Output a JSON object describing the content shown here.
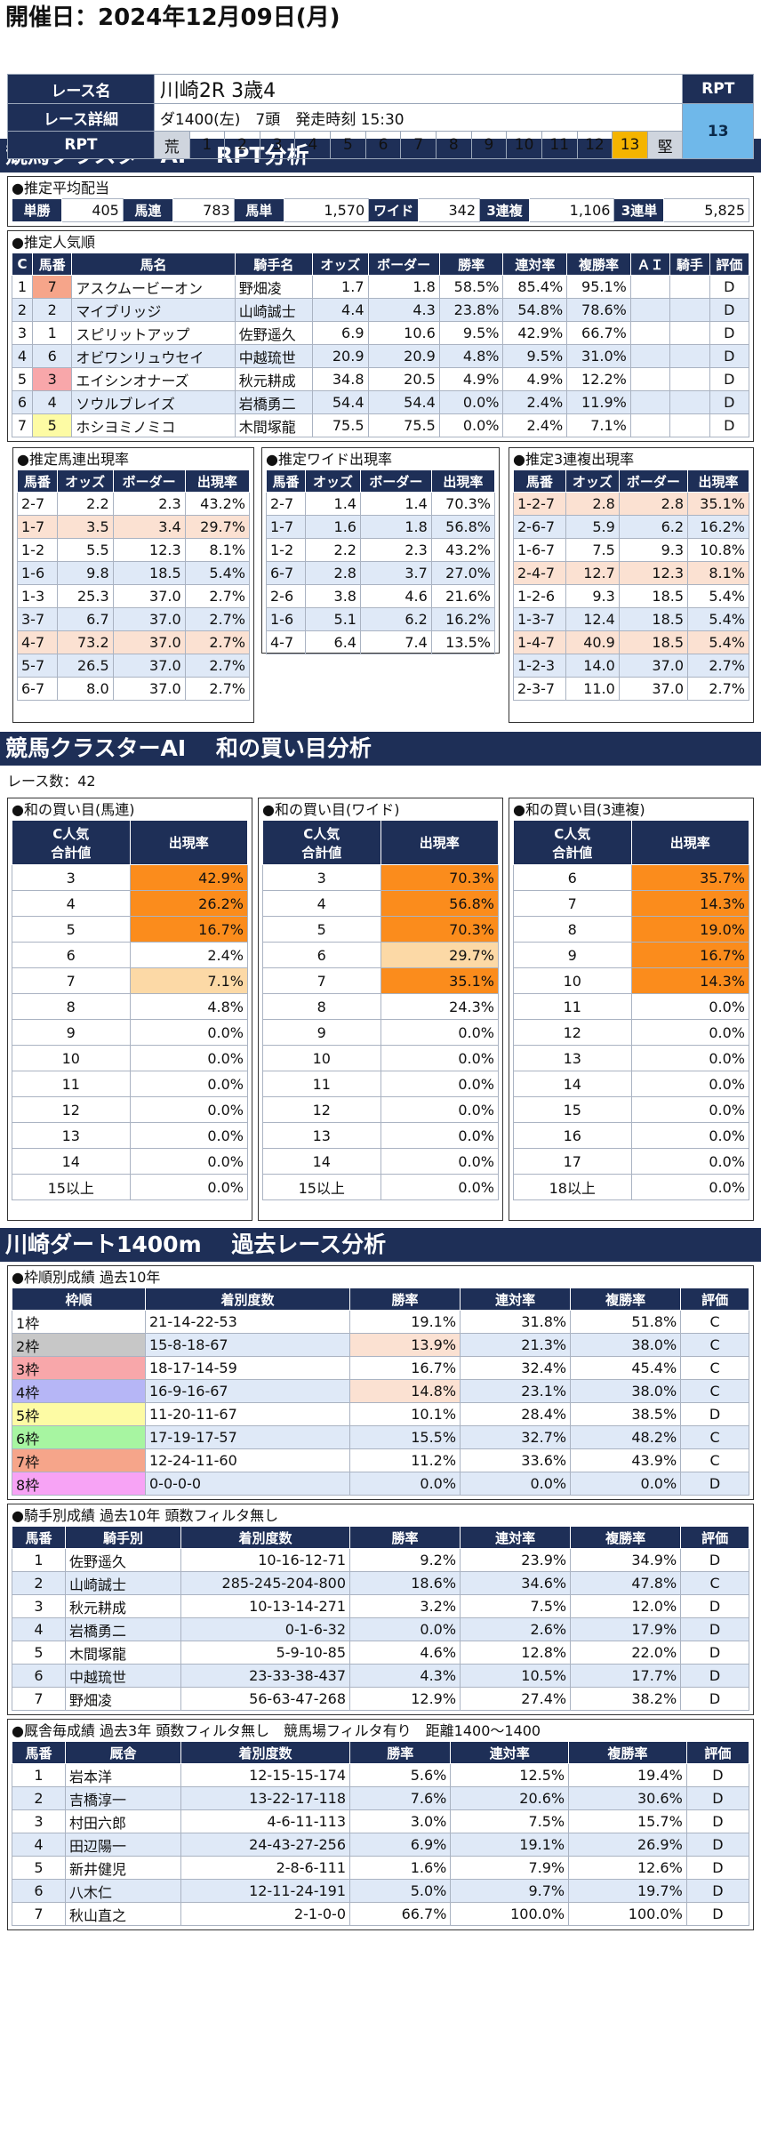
{
  "title": "開催日：2024年12月09日(月)",
  "race": {
    "name_label": "レース名",
    "name": "川崎2R 3歳4",
    "detail_label": "レース詳細",
    "detail": "ダ1400(左)　7頭　発走時刻 15:30",
    "rpt_label": "RPT",
    "rpt_head": "RPT",
    "rpt_value": "13",
    "scale": [
      "荒",
      "1",
      "2",
      "3",
      "4",
      "5",
      "6",
      "7",
      "8",
      "9",
      "10",
      "11",
      "12",
      "13",
      "堅"
    ]
  },
  "band1": "競馬クラスターAI　 RPT分析",
  "payout": {
    "title": "●推定平均配当",
    "items": [
      {
        "k": "単勝",
        "v": "405"
      },
      {
        "k": "馬連",
        "v": "783"
      },
      {
        "k": "馬単",
        "v": "1,570"
      },
      {
        "k": "ワイド",
        "v": "342"
      },
      {
        "k": "3連複",
        "v": "1,106"
      },
      {
        "k": "3連単",
        "v": "5,825"
      }
    ]
  },
  "pop": {
    "title": "●推定人気順",
    "headers": [
      "C",
      "馬番",
      "馬名",
      "騎手名",
      "オッズ",
      "ボーダー",
      "勝率",
      "連対率",
      "複勝率",
      "ＡＩ",
      "騎手",
      "評価"
    ],
    "rows": [
      [
        "1",
        "7",
        "アスクムービーオン",
        "野畑凌",
        "1.7",
        "1.8",
        "58.5%",
        "85.4%",
        "95.1%",
        "",
        "",
        "D"
      ],
      [
        "2",
        "2",
        "マイブリッジ",
        "山崎誠士",
        "4.4",
        "4.3",
        "23.8%",
        "54.8%",
        "78.6%",
        "",
        "",
        "D"
      ],
      [
        "3",
        "1",
        "スピリットアップ",
        "佐野遥久",
        "6.9",
        "10.6",
        "9.5%",
        "42.9%",
        "66.7%",
        "",
        "",
        "D"
      ],
      [
        "4",
        "6",
        "オビワンリュウセイ",
        "中越琉世",
        "20.9",
        "20.9",
        "4.8%",
        "9.5%",
        "31.0%",
        "",
        "",
        "D"
      ],
      [
        "5",
        "3",
        "エイシンオナーズ",
        "秋元耕成",
        "34.8",
        "20.5",
        "4.9%",
        "4.9%",
        "12.2%",
        "",
        "",
        "D"
      ],
      [
        "6",
        "4",
        "ソウルブレイズ",
        "岩橋勇二",
        "54.4",
        "54.4",
        "0.0%",
        "2.4%",
        "11.9%",
        "",
        "",
        "D"
      ],
      [
        "7",
        "5",
        "ホシヨミノミコ",
        "木間塚龍",
        "75.5",
        "75.5",
        "0.0%",
        "2.4%",
        "7.1%",
        "",
        "",
        "D"
      ]
    ]
  },
  "umaren": {
    "title": "●推定馬連出現率",
    "headers": [
      "馬番",
      "オッズ",
      "ボーダー",
      "出現率"
    ],
    "rows": [
      [
        "2-7",
        "2.2",
        "2.3",
        "43.2%"
      ],
      [
        "1-7",
        "3.5",
        "3.4",
        "29.7%"
      ],
      [
        "1-2",
        "5.5",
        "12.3",
        "8.1%"
      ],
      [
        "1-6",
        "9.8",
        "18.5",
        "5.4%"
      ],
      [
        "1-3",
        "25.3",
        "37.0",
        "2.7%"
      ],
      [
        "3-7",
        "6.7",
        "37.0",
        "2.7%"
      ],
      [
        "4-7",
        "73.2",
        "37.0",
        "2.7%"
      ],
      [
        "5-7",
        "26.5",
        "37.0",
        "2.7%"
      ],
      [
        "6-7",
        "8.0",
        "37.0",
        "2.7%"
      ]
    ]
  },
  "wide": {
    "title": "●推定ワイド出現率",
    "headers": [
      "馬番",
      "オッズ",
      "ボーダー",
      "出現率"
    ],
    "rows": [
      [
        "2-7",
        "1.4",
        "1.4",
        "70.3%"
      ],
      [
        "1-7",
        "1.6",
        "1.8",
        "56.8%"
      ],
      [
        "1-2",
        "2.2",
        "2.3",
        "43.2%"
      ],
      [
        "6-7",
        "2.8",
        "3.7",
        "27.0%"
      ],
      [
        "2-6",
        "3.8",
        "4.6",
        "21.6%"
      ],
      [
        "1-6",
        "5.1",
        "6.2",
        "16.2%"
      ],
      [
        "4-7",
        "6.4",
        "7.4",
        "13.5%"
      ]
    ]
  },
  "sanren": {
    "title": "●推定3連複出現率",
    "headers": [
      "馬番",
      "オッズ",
      "ボーダー",
      "出現率"
    ],
    "rows": [
      [
        "1-2-7",
        "2.8",
        "2.8",
        "35.1%"
      ],
      [
        "2-6-7",
        "5.9",
        "6.2",
        "16.2%"
      ],
      [
        "1-6-7",
        "7.5",
        "9.3",
        "10.8%"
      ],
      [
        "2-4-7",
        "12.7",
        "12.3",
        "8.1%"
      ],
      [
        "1-2-6",
        "9.3",
        "18.5",
        "5.4%"
      ],
      [
        "1-3-7",
        "12.4",
        "18.5",
        "5.4%"
      ],
      [
        "1-4-7",
        "40.9",
        "18.5",
        "5.4%"
      ],
      [
        "1-2-3",
        "14.0",
        "37.0",
        "2.7%"
      ],
      [
        "2-3-7",
        "11.0",
        "37.0",
        "2.7%"
      ]
    ]
  },
  "band2": "競馬クラスターAI　 和の買い目分析",
  "race_count": "レース数：42",
  "sum_umaren": {
    "title": "●和の買い目(馬連)",
    "h1": "C人気\n合計値",
    "h2": "出現率",
    "rows": [
      [
        "3",
        "42.9%"
      ],
      [
        "4",
        "26.2%"
      ],
      [
        "5",
        "16.7%"
      ],
      [
        "6",
        "2.4%"
      ],
      [
        "7",
        "7.1%"
      ],
      [
        "8",
        "4.8%"
      ],
      [
        "9",
        "0.0%"
      ],
      [
        "10",
        "0.0%"
      ],
      [
        "11",
        "0.0%"
      ],
      [
        "12",
        "0.0%"
      ],
      [
        "13",
        "0.0%"
      ],
      [
        "14",
        "0.0%"
      ],
      [
        "15以上",
        "0.0%"
      ]
    ]
  },
  "sum_wide": {
    "title": "●和の買い目(ワイド)",
    "h1": "C人気\n合計値",
    "h2": "出現率",
    "rows": [
      [
        "3",
        "70.3%"
      ],
      [
        "4",
        "56.8%"
      ],
      [
        "5",
        "70.3%"
      ],
      [
        "6",
        "29.7%"
      ],
      [
        "7",
        "35.1%"
      ],
      [
        "8",
        "24.3%"
      ],
      [
        "9",
        "0.0%"
      ],
      [
        "10",
        "0.0%"
      ],
      [
        "11",
        "0.0%"
      ],
      [
        "12",
        "0.0%"
      ],
      [
        "13",
        "0.0%"
      ],
      [
        "14",
        "0.0%"
      ],
      [
        "15以上",
        "0.0%"
      ]
    ]
  },
  "sum_sanren": {
    "title": "●和の買い目(3連複)",
    "h1": "C人気\n合計値",
    "h2": "出現率",
    "rows": [
      [
        "6",
        "35.7%"
      ],
      [
        "7",
        "14.3%"
      ],
      [
        "8",
        "19.0%"
      ],
      [
        "9",
        "16.7%"
      ],
      [
        "10",
        "14.3%"
      ],
      [
        "11",
        "0.0%"
      ],
      [
        "12",
        "0.0%"
      ],
      [
        "13",
        "0.0%"
      ],
      [
        "14",
        "0.0%"
      ],
      [
        "15",
        "0.0%"
      ],
      [
        "16",
        "0.0%"
      ],
      [
        "17",
        "0.0%"
      ],
      [
        "18以上",
        "0.0%"
      ]
    ]
  },
  "band3": "川崎ダート1400m　 過去レース分析",
  "waku": {
    "title": "●枠順別成績 過去10年",
    "headers": [
      "枠順",
      "着別度数",
      "勝率",
      "連対率",
      "複勝率",
      "評価"
    ],
    "rows": [
      [
        "1枠",
        "21-14-22-53",
        "19.1%",
        "31.8%",
        "51.8%",
        "C"
      ],
      [
        "2枠",
        "15-8-18-67",
        "13.9%",
        "21.3%",
        "38.0%",
        "C"
      ],
      [
        "3枠",
        "18-17-14-59",
        "16.7%",
        "32.4%",
        "45.4%",
        "C"
      ],
      [
        "4枠",
        "16-9-16-67",
        "14.8%",
        "23.1%",
        "38.0%",
        "C"
      ],
      [
        "5枠",
        "11-20-11-67",
        "10.1%",
        "28.4%",
        "38.5%",
        "D"
      ],
      [
        "6枠",
        "17-19-17-57",
        "15.5%",
        "32.7%",
        "48.2%",
        "C"
      ],
      [
        "7枠",
        "12-24-11-60",
        "11.2%",
        "33.6%",
        "43.9%",
        "C"
      ],
      [
        "8枠",
        "0-0-0-0",
        "0.0%",
        "0.0%",
        "0.0%",
        "D"
      ]
    ]
  },
  "jockey": {
    "title": "●騎手別成績 過去10年 頭数フィルタ無し",
    "headers": [
      "馬番",
      "騎手別",
      "着別度数",
      "勝率",
      "連対率",
      "複勝率",
      "評価"
    ],
    "rows": [
      [
        "1",
        "佐野遥久",
        "10-16-12-71",
        "9.2%",
        "23.9%",
        "34.9%",
        "D"
      ],
      [
        "2",
        "山崎誠士",
        "285-245-204-800",
        "18.6%",
        "34.6%",
        "47.8%",
        "C"
      ],
      [
        "3",
        "秋元耕成",
        "10-13-14-271",
        "3.2%",
        "7.5%",
        "12.0%",
        "D"
      ],
      [
        "4",
        "岩橋勇二",
        "0-1-6-32",
        "0.0%",
        "2.6%",
        "17.9%",
        "D"
      ],
      [
        "5",
        "木間塚龍",
        "5-9-10-85",
        "4.6%",
        "12.8%",
        "22.0%",
        "D"
      ],
      [
        "6",
        "中越琉世",
        "23-33-38-437",
        "4.3%",
        "10.5%",
        "17.7%",
        "D"
      ],
      [
        "7",
        "野畑凌",
        "56-63-47-268",
        "12.9%",
        "27.4%",
        "38.2%",
        "D"
      ]
    ]
  },
  "trainer": {
    "title": "●厩舎毎成績 過去3年 頭数フィルタ無し　競馬場フィルタ有り　距離1400～1400",
    "headers": [
      "馬番",
      "厩舎",
      "着別度数",
      "勝率",
      "連対率",
      "複勝率",
      "評価"
    ],
    "rows": [
      [
        "1",
        "岩本洋",
        "12-15-15-174",
        "5.6%",
        "12.5%",
        "19.4%",
        "D"
      ],
      [
        "2",
        "吉橋淳一",
        "13-22-17-118",
        "7.6%",
        "20.6%",
        "30.6%",
        "D"
      ],
      [
        "3",
        "村田六郎",
        "4-6-11-113",
        "3.0%",
        "7.5%",
        "15.7%",
        "D"
      ],
      [
        "4",
        "田辺陽一",
        "24-43-27-256",
        "6.9%",
        "19.1%",
        "26.9%",
        "D"
      ],
      [
        "5",
        "新井健児",
        "2-8-6-111",
        "1.6%",
        "7.9%",
        "12.6%",
        "D"
      ],
      [
        "6",
        "八木仁",
        "12-11-24-191",
        "5.0%",
        "9.7%",
        "19.7%",
        "D"
      ],
      [
        "7",
        "秋山直之",
        "2-1-0-0",
        "66.7%",
        "100.0%",
        "100.0%",
        "D"
      ]
    ]
  }
}
